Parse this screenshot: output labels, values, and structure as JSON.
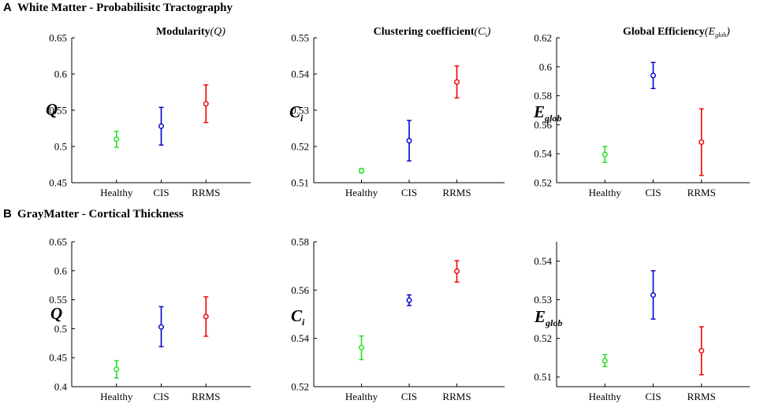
{
  "sections": [
    {
      "letter": "A",
      "title": "White Matter - Probabilisitc Tractography"
    },
    {
      "letter": "B",
      "title": "GrayMatter - Cortical Thickness"
    }
  ],
  "chart_data": [
    {
      "type": "scatter",
      "style": "errorbar",
      "title": "Modularity",
      "title_symbol": "(Q)",
      "ylabel": "Q",
      "ylabel_sub": "",
      "categories": [
        "Healthy",
        "CIS",
        "RRMS"
      ],
      "colors": [
        "#22dd22",
        "#0000cc",
        "#ee0000"
      ],
      "values": [
        0.51,
        0.528,
        0.559
      ],
      "err_low": [
        0.499,
        0.502,
        0.533
      ],
      "err_high": [
        0.521,
        0.554,
        0.585
      ],
      "ylim": [
        0.45,
        0.65
      ],
      "yticks": [
        0.45,
        0.5,
        0.55,
        0.6,
        0.65
      ],
      "ytick_labels": [
        "0.45",
        "0.5",
        "0.55",
        "0.6",
        "0.65"
      ]
    },
    {
      "type": "scatter",
      "style": "errorbar",
      "title": "Clustering coefficient",
      "title_symbol": "(C",
      "title_symbol_sub": "i",
      "title_symbol_close": ")",
      "ylabel": "C",
      "ylabel_sub": "i",
      "categories": [
        "Healthy",
        "CIS",
        "RRMS"
      ],
      "colors": [
        "#22dd22",
        "#0000cc",
        "#ee0000"
      ],
      "values": [
        0.5133,
        0.5216,
        0.5378
      ],
      "err_low": [
        0.5127,
        0.516,
        0.5334
      ],
      "err_high": [
        0.5139,
        0.5272,
        0.5422
      ],
      "ylim": [
        0.51,
        0.55
      ],
      "yticks": [
        0.51,
        0.52,
        0.53,
        0.54,
        0.55
      ],
      "ytick_labels": [
        "0.51",
        "0.52",
        "0.53",
        "0.54",
        "0.55"
      ]
    },
    {
      "type": "scatter",
      "style": "errorbar",
      "title": "Global Efficiency",
      "title_symbol": "(E",
      "title_symbol_sub": "glob",
      "title_symbol_close": ")",
      "ylabel": "E",
      "ylabel_sub": "glob",
      "categories": [
        "Healthy",
        "CIS",
        "RRMS"
      ],
      "colors": [
        "#22dd22",
        "#0000cc",
        "#ee0000"
      ],
      "values": [
        0.5395,
        0.594,
        0.548
      ],
      "err_low": [
        0.534,
        0.585,
        0.525
      ],
      "err_high": [
        0.545,
        0.603,
        0.571
      ],
      "ylim": [
        0.52,
        0.62
      ],
      "yticks": [
        0.52,
        0.54,
        0.56,
        0.58,
        0.6,
        0.62
      ],
      "ytick_labels": [
        "0.52",
        "0.54",
        "0.56",
        "0.58",
        "0.6",
        "0.62"
      ]
    },
    {
      "type": "scatter",
      "style": "errorbar",
      "title": "",
      "title_symbol": "",
      "ylabel": "Q",
      "ylabel_sub": "",
      "categories": [
        "Healthy",
        "CIS",
        "RRMS"
      ],
      "colors": [
        "#22dd22",
        "#0000cc",
        "#ee0000"
      ],
      "values": [
        0.43,
        0.503,
        0.521
      ],
      "err_low": [
        0.415,
        0.469,
        0.487
      ],
      "err_high": [
        0.445,
        0.538,
        0.555
      ],
      "ylim": [
        0.4,
        0.65
      ],
      "yticks": [
        0.4,
        0.45,
        0.5,
        0.55,
        0.6,
        0.65
      ],
      "ytick_labels": [
        "0.4",
        "0.45",
        "0.5",
        "0.55",
        "0.6",
        "0.65"
      ]
    },
    {
      "type": "scatter",
      "style": "errorbar",
      "title": "",
      "title_symbol": "",
      "ylabel": "C",
      "ylabel_sub": "i",
      "categories": [
        "Healthy",
        "CIS",
        "RRMS"
      ],
      "colors": [
        "#22dd22",
        "#0000cc",
        "#ee0000"
      ],
      "values": [
        0.5362,
        0.5558,
        0.5678
      ],
      "err_low": [
        0.5312,
        0.5536,
        0.5633
      ],
      "err_high": [
        0.541,
        0.558,
        0.5722
      ],
      "ylim": [
        0.52,
        0.58
      ],
      "yticks": [
        0.52,
        0.54,
        0.56,
        0.58
      ],
      "ytick_labels": [
        "0.52",
        "0.54",
        "0.56",
        "0.58"
      ]
    },
    {
      "type": "scatter",
      "style": "errorbar",
      "title": "",
      "title_symbol": "",
      "ylabel": "E",
      "ylabel_sub": "glob",
      "categories": [
        "Healthy",
        "CIS",
        "RRMS"
      ],
      "colors": [
        "#22dd22",
        "#0000cc",
        "#ee0000"
      ],
      "values": [
        0.5142,
        0.5312,
        0.5168
      ],
      "err_low": [
        0.5127,
        0.525,
        0.5106
      ],
      "err_high": [
        0.5158,
        0.5375,
        0.523
      ],
      "ylim": [
        0.5075,
        0.545
      ],
      "yticks": [
        0.51,
        0.52,
        0.53,
        0.54
      ],
      "ytick_labels": [
        "0.51",
        "0.52",
        "0.53",
        "0.54"
      ]
    }
  ]
}
